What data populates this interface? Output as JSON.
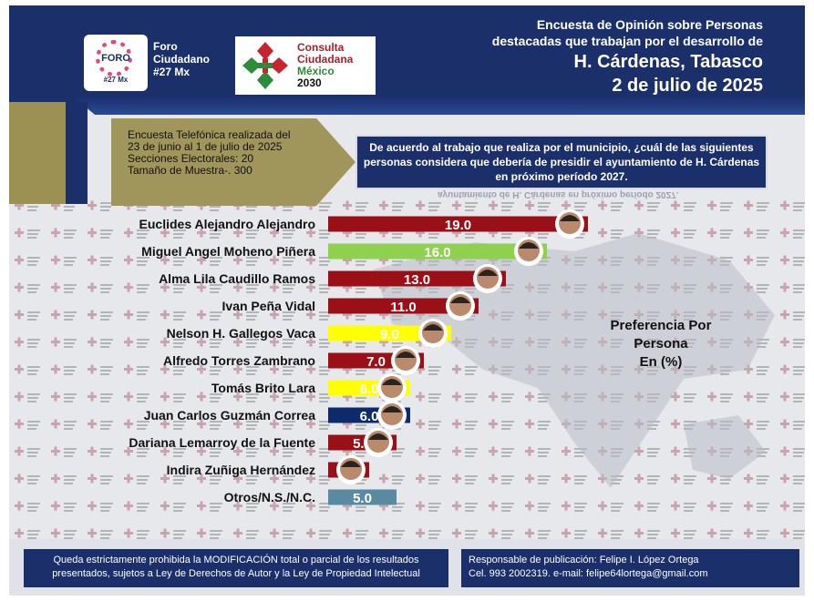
{
  "header": {
    "foro_logo_word": "FORO",
    "foro_logo_num": "#27 Mx",
    "foro_lines": [
      "Foro",
      "Ciudadano",
      "#27 Mx"
    ],
    "consulta_lines": [
      "Consulta",
      "Ciudadana",
      "México",
      "2030"
    ],
    "title_line1": "Encuesta de Opinión sobre Personas",
    "title_line2": "destacadas que trabajan por el desarrollo de",
    "title_line3": "H. Cárdenas, Tabasco",
    "title_line4": "2 de julio de 2025"
  },
  "method": {
    "line1": "Encuesta Telefónica realizada del",
    "line2": "23 de junio al 1 de julio de 2025",
    "line3": "Secciones Electorales: 20",
    "line4": "Tamaño de Muestra-. 300"
  },
  "question": {
    "text": "De acuerdo al trabajo que realiza por el municipio, ¿cuál de las siguientes personas considera que debería de presidir el ayuntamiento de H. Cárdenas en próximo período 2027.",
    "mirror": "ayuntamiento de H. Cárdenas en próximo período 2027."
  },
  "side_label": {
    "line1": "Preferencia Por",
    "line2": "Persona",
    "line3": "En (%)"
  },
  "chart_data": {
    "type": "bar",
    "orientation": "horizontal",
    "categories": [
      "Euclides Alejandro Alejandro",
      "Miguel Angel Moheno Piñera",
      "Alma Lila Caudillo Ramos",
      "Ivan Peña Vidal",
      "Nelson H. Gallegos Vaca",
      "Alfredo Torres Zambrano",
      "Tomás Brito Lara",
      "Juan Carlos Guzmán Correa",
      "Dariana Lemarroy de la Fuente",
      "Indira Zuñiga Hernández",
      "Otros/N.S./N.C."
    ],
    "values": [
      19.0,
      16.0,
      13.0,
      11.0,
      9.0,
      7.0,
      6.0,
      6.0,
      5.0,
      3.0,
      5.0
    ],
    "labels": [
      "19.0",
      "16.0",
      "13.0",
      "11.0",
      "9.0",
      "7.0",
      "6.0",
      "6.0",
      "5.0",
      "3.0",
      "5.0"
    ],
    "colors": [
      "#9b1016",
      "#8fd14f",
      "#9b1016",
      "#9b1016",
      "#ffff00",
      "#9b1016",
      "#ffff00",
      "#0d2a6b",
      "#9b1016",
      "#9b1016",
      "#5a8aa0"
    ],
    "label_colors": [
      "#ffffff",
      "#ffffff",
      "#ffffff",
      "#ffffff",
      "#ffffff",
      "#ffffff",
      "#ffffff",
      "#ffffff",
      "#ffffff",
      "#ffffff",
      "#ffffff"
    ],
    "photo": [
      true,
      true,
      true,
      true,
      true,
      true,
      true,
      true,
      true,
      true,
      false
    ],
    "units": "%"
  },
  "footer": {
    "left_line1": "Queda estrictamente prohibida la MODIFICACIÓN  total o parcial de los resultados",
    "left_line2": "presentados, sujetos a Ley de Derechos de Autor y la Ley de Propiedad Intelectual",
    "right_line1": "Responsable de publicación: Felipe I. López Ortega",
    "right_line2": "Cel. 993 2002319. e-mail: felipe64lortega@gmail.com"
  },
  "colors": {
    "navy": "#1b2f6b",
    "olive": "#a0955a",
    "maroon": "#9b1016"
  }
}
